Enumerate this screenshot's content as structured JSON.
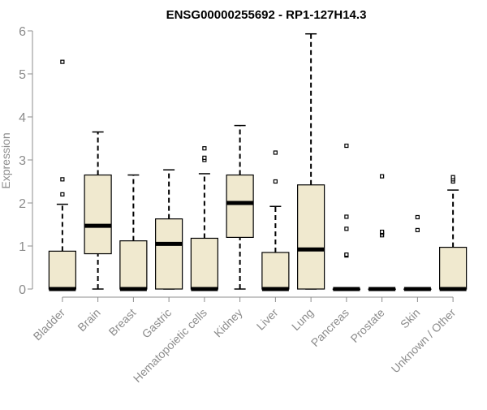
{
  "chart_data": {
    "type": "box",
    "title": "ENSG00000255692 - RP1-127H14.3",
    "ylabel": "Expression",
    "xlabel": "",
    "ylim": [
      0,
      6
    ],
    "yticks": [
      0,
      1,
      2,
      3,
      4,
      5,
      6
    ],
    "grid": false,
    "colors": {
      "box_fill": "#f0e9cf",
      "box_stroke": "#000000",
      "axis": "#8c8c8c",
      "tick_label": "#8c8c8c"
    },
    "categories": [
      "Bladder",
      "Brain",
      "Breast",
      "Gastric",
      "Hematopoietic cells",
      "Kidney",
      "Liver",
      "Lung",
      "Pancreas",
      "Prostate",
      "Skin",
      "Unknown / Other"
    ],
    "boxes": [
      {
        "min": 0,
        "q1": 0,
        "median": 0,
        "q3": 0.88,
        "max": 1.97,
        "outliers": [
          2.2,
          2.55,
          5.28
        ]
      },
      {
        "min": 0,
        "q1": 0.82,
        "median": 1.47,
        "q3": 2.65,
        "max": 3.65,
        "outliers": []
      },
      {
        "min": 0,
        "q1": 0,
        "median": 0,
        "q3": 1.12,
        "max": 2.65,
        "outliers": []
      },
      {
        "min": 0,
        "q1": 0,
        "median": 1.05,
        "q3": 1.63,
        "max": 2.77,
        "outliers": []
      },
      {
        "min": 0,
        "q1": 0,
        "median": 0,
        "q3": 1.18,
        "max": 2.68,
        "outliers": [
          3.0,
          3.05,
          3.27
        ]
      },
      {
        "min": 0,
        "q1": 1.2,
        "median": 2.0,
        "q3": 2.65,
        "max": 3.8,
        "outliers": []
      },
      {
        "min": 0,
        "q1": 0,
        "median": 0,
        "q3": 0.85,
        "max": 1.92,
        "outliers": [
          2.5,
          3.17
        ]
      },
      {
        "min": 0,
        "q1": 0,
        "median": 0.92,
        "q3": 2.42,
        "max": 5.93,
        "outliers": []
      },
      {
        "min": 0,
        "q1": 0,
        "median": 0,
        "q3": 0,
        "max": 0,
        "outliers": [
          0.78,
          0.8,
          1.4,
          1.68,
          3.33
        ]
      },
      {
        "min": 0,
        "q1": 0,
        "median": 0,
        "q3": 0,
        "max": 0,
        "outliers": [
          1.25,
          1.3,
          1.33,
          2.62
        ]
      },
      {
        "min": 0,
        "q1": 0,
        "median": 0,
        "q3": 0,
        "max": 0,
        "outliers": [
          1.37,
          1.67
        ]
      },
      {
        "min": 0,
        "q1": 0,
        "median": 0,
        "q3": 0.97,
        "max": 2.3,
        "outliers": [
          2.5,
          2.55,
          2.6
        ]
      }
    ]
  }
}
